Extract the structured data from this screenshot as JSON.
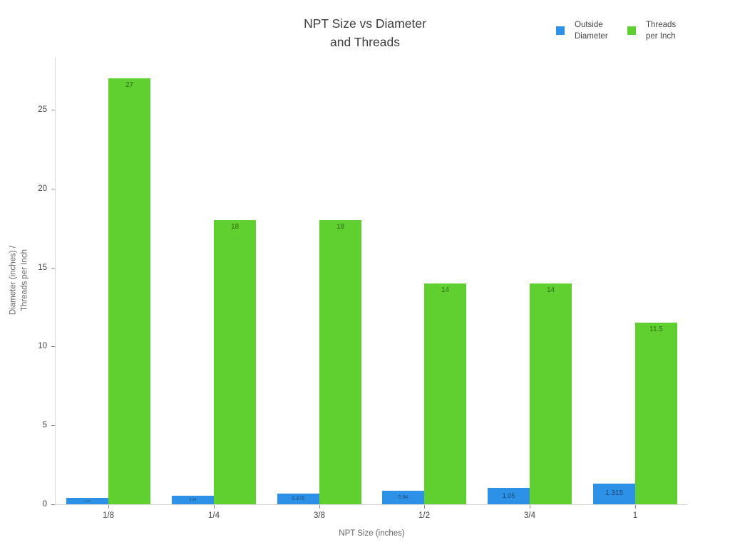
{
  "chart_data": {
    "type": "bar",
    "title": "NPT Size vs Diameter and Threads",
    "title_lines": [
      "NPT Size vs Diameter",
      "and Threads"
    ],
    "xlabel": "NPT Size (inches)",
    "ylabel": "Diameter (inches) / Threads per Inch",
    "ylabel_lines": [
      "Diameter (inches) /",
      "Threads per Inch"
    ],
    "categories": [
      "1/8",
      "1/4",
      "3/8",
      "1/2",
      "3/4",
      "1"
    ],
    "series": [
      {
        "name": "Outside Diameter",
        "legend_lines": "Outside\nDiameter",
        "color": "#2e91e8",
        "label_color": "#17486f",
        "values": [
          0.405,
          0.54,
          0.675,
          0.84,
          1.05,
          1.315
        ],
        "labels": [
          "0.405",
          "0.54",
          "0.675",
          "0.84",
          "1.05",
          "1.315"
        ]
      },
      {
        "name": "Threads per Inch",
        "legend_lines": "Threads\nper Inch",
        "color": "#5fd02f",
        "label_color": "#2f6817",
        "values": [
          27,
          18,
          18,
          14,
          14,
          11.5
        ],
        "labels": [
          "27",
          "18",
          "18",
          "14",
          "14",
          "11.5"
        ]
      }
    ],
    "yticks": [
      0,
      5,
      10,
      15,
      20,
      25
    ],
    "ylim": [
      0,
      28.34
    ],
    "grid": false,
    "legend_position": "top-right",
    "background": "#ffffff",
    "axis_color": "#d9d9d9"
  }
}
